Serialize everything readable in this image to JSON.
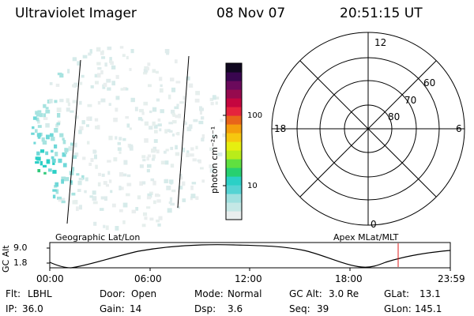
{
  "header": {
    "title": "Ultraviolet Imager",
    "date": "08 Nov 07",
    "time": "20:51:15 UT"
  },
  "colorbar": {
    "unit": "photon cm⁻²s⁻¹",
    "ticks": [
      "100",
      "10"
    ],
    "colors": [
      "#e9eeee",
      "#c5e8e6",
      "#9fe0df",
      "#55d3d3",
      "#2bd0c6",
      "#27d070",
      "#60e040",
      "#b9ec1a",
      "#e6ee10",
      "#f6c70f",
      "#f49e0c",
      "#e8641a",
      "#e5233d",
      "#c5063f",
      "#960a4e",
      "#6b0a5c",
      "#39064f",
      "#100820"
    ]
  },
  "polar": {
    "clock_labels": [
      "12",
      "18",
      "6",
      "0"
    ],
    "lat_labels": [
      "60",
      "70",
      "80"
    ]
  },
  "footprint": {
    "label_left": "Geographic Lat/Lon",
    "label_right": "Apex MLat/MLT",
    "ylabel": "GC Alt",
    "y_ticks": [
      "9.0",
      "1.8"
    ],
    "x_ticks": [
      "00:00",
      "06:00",
      "12:00",
      "18:00",
      "23:59"
    ]
  },
  "status": {
    "row1": {
      "flt_label": "Flt:",
      "flt_value": "LBHL",
      "door_label": "Door:",
      "door_value": "Open",
      "mode_label": "Mode:",
      "mode_value": "Normal",
      "gcalt_label": "GC Alt:",
      "gcalt_value": "3.0 Re",
      "glat_label": "GLat:",
      "glat_value": "13.1"
    },
    "row2": {
      "ip_label": "IP:",
      "ip_value": "36.0",
      "gain_label": "Gain:",
      "gain_value": "14",
      "dsp_label": "Dsp:",
      "dsp_value": "3.6",
      "seq_label": "Seq:",
      "seq_value": "39",
      "glon_label": "GLon:",
      "glon_value": "145.1"
    }
  }
}
